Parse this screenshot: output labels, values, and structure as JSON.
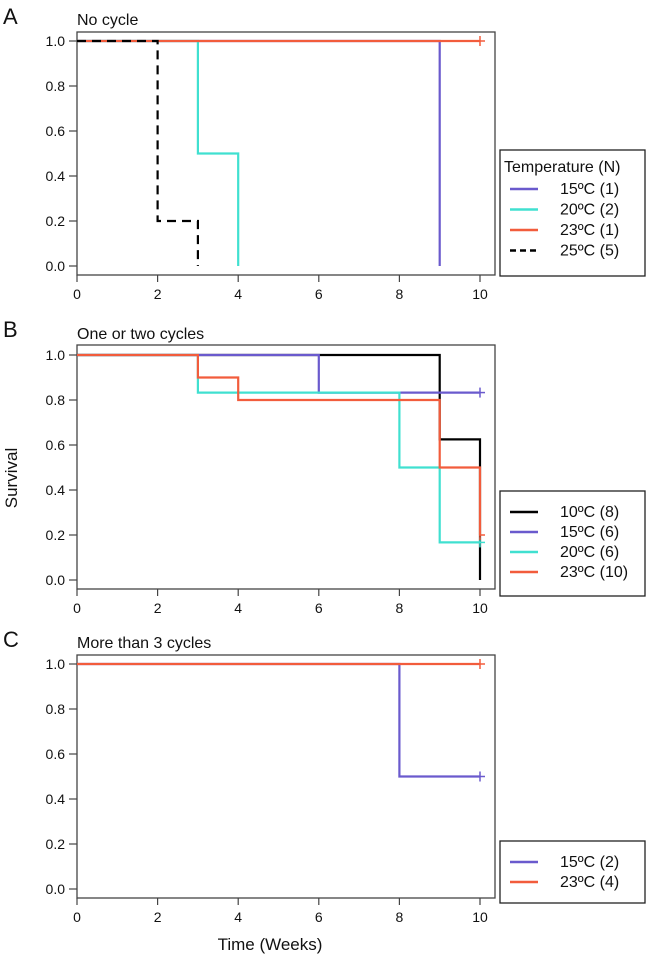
{
  "figure": {
    "ylabel": "Survival",
    "xlabel": "Time (Weeks)"
  },
  "chart_data": [
    {
      "type": "line",
      "step": true,
      "panel_letter": "A",
      "title": "No cycle",
      "xlabel": "",
      "ylabel": "",
      "xlim": [
        0,
        10
      ],
      "ylim": [
        0,
        1
      ],
      "xticks": [
        "0",
        "2",
        "4",
        "6",
        "8",
        "10"
      ],
      "yticks": [
        "0.0",
        "0.2",
        "0.4",
        "0.6",
        "0.8",
        "1.0"
      ],
      "legend": {
        "title": "Temperature (N)",
        "placement": "right"
      },
      "series": [
        {
          "name": "15ºC (1)",
          "color": "#6a5acd",
          "dashed": false,
          "x": [
            0,
            9,
            9
          ],
          "y": [
            1,
            1,
            0
          ],
          "censor": []
        },
        {
          "name": "20ºC (2)",
          "color": "#40e0d0",
          "dashed": false,
          "x": [
            0,
            3,
            3,
            4,
            4
          ],
          "y": [
            1,
            1,
            0.5,
            0.5,
            0
          ],
          "censor": []
        },
        {
          "name": "23ºC (1)",
          "color": "#f25c3c",
          "dashed": false,
          "x": [
            0,
            10
          ],
          "y": [
            1,
            1
          ],
          "censor": [
            [
              10,
              1
            ]
          ]
        },
        {
          "name": "25ºC (5)",
          "color": "#000000",
          "dashed": true,
          "x": [
            0,
            2,
            2,
            3,
            3
          ],
          "y": [
            1,
            1,
            0.2,
            0.2,
            0
          ],
          "censor": []
        }
      ]
    },
    {
      "type": "line",
      "step": true,
      "panel_letter": "B",
      "title": "One or two cycles",
      "xlabel": "",
      "ylabel": "Survival",
      "xlim": [
        0,
        10
      ],
      "ylim": [
        0,
        1
      ],
      "xticks": [
        "0",
        "2",
        "4",
        "6",
        "8",
        "10"
      ],
      "yticks": [
        "0.0",
        "0.2",
        "0.4",
        "0.6",
        "0.8",
        "1.0"
      ],
      "legend": {
        "title": "",
        "placement": "right"
      },
      "series": [
        {
          "name": "10ºC (8)",
          "color": "#000000",
          "dashed": false,
          "x": [
            0,
            9,
            9,
            10,
            10
          ],
          "y": [
            1,
            1,
            0.625,
            0.625,
            0
          ],
          "censor": []
        },
        {
          "name": "15ºC (6)",
          "color": "#6a5acd",
          "dashed": false,
          "x": [
            0,
            6,
            6,
            10
          ],
          "y": [
            1,
            1,
            0.833,
            0.833
          ],
          "censor": [
            [
              10,
              0.833
            ]
          ]
        },
        {
          "name": "20ºC (6)",
          "color": "#40e0d0",
          "dashed": false,
          "x": [
            0,
            3,
            3,
            8,
            8,
            9,
            9,
            10
          ],
          "y": [
            1,
            1,
            0.833,
            0.833,
            0.5,
            0.5,
            0.167,
            0.167
          ],
          "censor": [
            [
              10,
              0.167
            ]
          ]
        },
        {
          "name": "23ºC (10)",
          "color": "#f25c3c",
          "dashed": false,
          "x": [
            0,
            3,
            3,
            4,
            4,
            9,
            9,
            10,
            10
          ],
          "y": [
            1,
            1,
            0.9,
            0.9,
            0.8,
            0.8,
            0.5,
            0.5,
            0.2
          ],
          "censor": [
            [
              10,
              0.2
            ]
          ]
        }
      ]
    },
    {
      "type": "line",
      "step": true,
      "panel_letter": "C",
      "title": "More than 3 cycles",
      "xlabel": "Time (Weeks)",
      "ylabel": "",
      "xlim": [
        0,
        10
      ],
      "ylim": [
        0,
        1
      ],
      "xticks": [
        "0",
        "2",
        "4",
        "6",
        "8",
        "10"
      ],
      "yticks": [
        "0.0",
        "0.2",
        "0.4",
        "0.6",
        "0.8",
        "1.0"
      ],
      "legend": {
        "title": "",
        "placement": "right"
      },
      "series": [
        {
          "name": "15ºC (2)",
          "color": "#6a5acd",
          "dashed": false,
          "x": [
            0,
            8,
            8,
            10
          ],
          "y": [
            1,
            1,
            0.5,
            0.5
          ],
          "censor": [
            [
              10,
              0.5
            ]
          ]
        },
        {
          "name": "23ºC (4)",
          "color": "#f25c3c",
          "dashed": false,
          "x": [
            0,
            10
          ],
          "y": [
            1,
            1
          ],
          "censor": [
            [
              10,
              1
            ]
          ]
        }
      ]
    }
  ]
}
